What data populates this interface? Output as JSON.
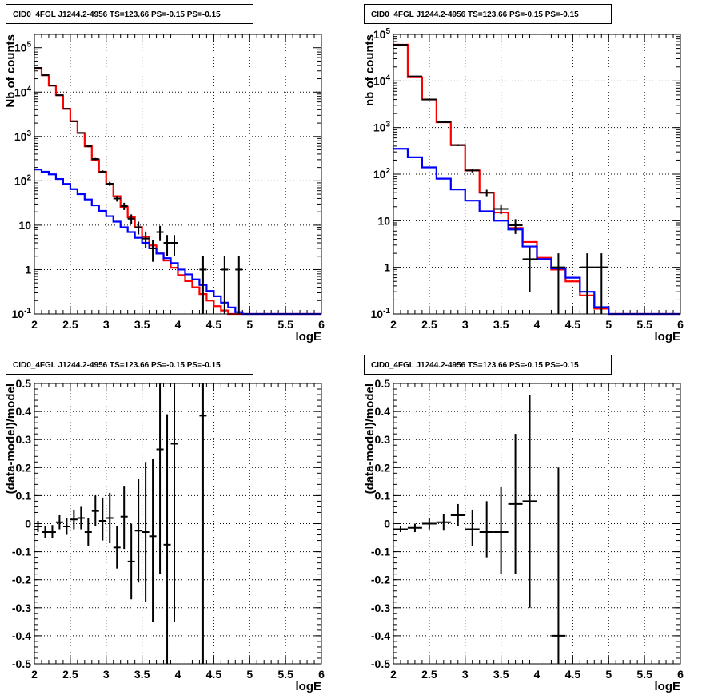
{
  "plots": [
    {
      "title": "CID0_4FGL J1244.2-4956 TS=123.66 PS=-0.15 PS=-0.15",
      "xlabel": "logE",
      "ylabel": "Nb of counts",
      "type": "line",
      "log_y": true,
      "xlim": [
        2,
        6
      ],
      "ylim": [
        0.1,
        200000
      ],
      "x_ticks": [
        "2",
        "2.5",
        "3",
        "3.5",
        "4",
        "4.5",
        "5",
        "5.5",
        "6"
      ],
      "y_ticks": [
        "10^-1",
        "1",
        "10",
        "10^2",
        "10^3",
        "10^4",
        "10^5"
      ],
      "grid": true
    },
    {
      "title": "CID0_4FGL J1244.2-4956 TS=123.66 PS=-0.15 PS=-0.15",
      "xlabel": "logE",
      "ylabel": "nb of counts",
      "type": "line",
      "log_y": true,
      "xlim": [
        2,
        6
      ],
      "ylim": [
        0.1,
        100000
      ],
      "x_ticks": [
        "2",
        "2.5",
        "3",
        "3.5",
        "4",
        "4.5",
        "5",
        "5.5",
        "6"
      ],
      "y_ticks": [
        "10^-1",
        "1",
        "10",
        "10^2",
        "10^3",
        "10^4",
        "10^5"
      ],
      "grid": true
    },
    {
      "title": "CID0_4FGL J1244.2-4956 TS=123.66 PS=-0.15 PS=-0.15",
      "xlabel": "logE",
      "ylabel": "(data-model)/model",
      "type": "scatter",
      "log_y": false,
      "xlim": [
        2,
        6
      ],
      "ylim": [
        -0.5,
        0.5
      ],
      "x_ticks": [
        "2",
        "2.5",
        "3",
        "3.5",
        "4",
        "4.5",
        "5",
        "5.5",
        "6"
      ],
      "y_ticks": [
        "-0.5",
        "-0.4",
        "-0.3",
        "-0.2",
        "-0.1",
        "0",
        "0.1",
        "0.2",
        "0.3",
        "0.4",
        "0.5"
      ],
      "grid": true
    },
    {
      "title": "CID0_4FGL J1244.2-4956 TS=123.66 PS=-0.15 PS=-0.15",
      "xlabel": "logE",
      "ylabel": "(data-model)/model",
      "type": "scatter",
      "log_y": false,
      "xlim": [
        2,
        6
      ],
      "ylim": [
        -0.5,
        0.5
      ],
      "x_ticks": [
        "2",
        "2.5",
        "3",
        "3.5",
        "4",
        "4.5",
        "5",
        "5.5",
        "6"
      ],
      "y_ticks": [
        "-0.5",
        "-0.4",
        "-0.3",
        "-0.2",
        "-0.1",
        "0",
        "0.1",
        "0.2",
        "0.3",
        "0.4",
        "0.5"
      ],
      "grid": true
    }
  ],
  "chart_data": [
    {
      "type": "line",
      "title": "CID0_4FGL J1244.2-4956 TS=123.66 PS=-0.15 PS=-0.15",
      "xlabel": "logE",
      "ylabel": "Nb of counts",
      "log_y": true,
      "xlim": [
        2,
        6
      ],
      "ylim": [
        0.1,
        200000
      ],
      "grid": true,
      "bin_edges": [
        2.0,
        2.1,
        2.2,
        2.3,
        2.4,
        2.5,
        2.6,
        2.7,
        2.8,
        2.9,
        3.0,
        3.1,
        3.2,
        3.3,
        3.4,
        3.5,
        3.6,
        3.7,
        3.8,
        3.9,
        4.0,
        4.1,
        4.2,
        4.3,
        4.4,
        4.5,
        4.6,
        4.7,
        4.8,
        4.9,
        5.0,
        5.1,
        5.2,
        5.3,
        5.4,
        5.5,
        5.6,
        5.7,
        5.8,
        5.9,
        6.0
      ],
      "series": [
        {
          "color": "#ff0000",
          "values": [
            35000,
            24000,
            14000,
            8500,
            4200,
            2200,
            1200,
            600,
            300,
            160,
            85,
            45,
            26,
            15,
            9,
            5.5,
            3.5,
            2.3,
            1.6,
            1.1,
            0.75,
            0.55,
            0.4,
            0.28,
            0.2,
            0.15,
            0.12,
            0.1,
            0.1,
            0.1,
            0.1,
            0.1,
            0.1,
            0.1,
            0.1,
            0.1,
            0.1,
            0.1,
            0.1,
            0.1
          ]
        },
        {
          "color": "#0000ff",
          "values": [
            180,
            160,
            140,
            110,
            85,
            65,
            50,
            38,
            28,
            21,
            16,
            12,
            9,
            7,
            5.2,
            4,
            3,
            2.3,
            1.8,
            1.4,
            1.0,
            0.78,
            0.6,
            0.45,
            0.33,
            0.25,
            0.18,
            0.14,
            0.11,
            0.1,
            0.1,
            0.1,
            0.1,
            0.1,
            0.1,
            0.1,
            0.1,
            0.1,
            0.1,
            0.1
          ]
        }
      ],
      "data_points": [
        {
          "x": 2.05,
          "y": 35000,
          "ylo": 34800,
          "yhi": 35200
        },
        {
          "x": 2.15,
          "y": 24000,
          "ylo": 23800,
          "yhi": 24200
        },
        {
          "x": 2.25,
          "y": 14000,
          "ylo": 13800,
          "yhi": 14200
        },
        {
          "x": 2.35,
          "y": 8500,
          "ylo": 8400,
          "yhi": 8600
        },
        {
          "x": 2.45,
          "y": 4200,
          "ylo": 4130,
          "yhi": 4270
        },
        {
          "x": 2.55,
          "y": 2200,
          "ylo": 2150,
          "yhi": 2250
        },
        {
          "x": 2.65,
          "y": 1200,
          "ylo": 1165,
          "yhi": 1235
        },
        {
          "x": 2.75,
          "y": 600,
          "ylo": 575,
          "yhi": 625
        },
        {
          "x": 2.85,
          "y": 310,
          "ylo": 292,
          "yhi": 328
        },
        {
          "x": 2.95,
          "y": 160,
          "ylo": 148,
          "yhi": 172
        },
        {
          "x": 3.05,
          "y": 86,
          "ylo": 77,
          "yhi": 95
        },
        {
          "x": 3.15,
          "y": 40,
          "ylo": 34,
          "yhi": 46
        },
        {
          "x": 3.25,
          "y": 27,
          "ylo": 22,
          "yhi": 32
        },
        {
          "x": 3.35,
          "y": 14,
          "ylo": 10.5,
          "yhi": 17.5
        },
        {
          "x": 3.45,
          "y": 9,
          "ylo": 6.2,
          "yhi": 12
        },
        {
          "x": 3.55,
          "y": 5,
          "ylo": 3,
          "yhi": 7.2
        },
        {
          "x": 3.65,
          "y": 3,
          "ylo": 1.5,
          "yhi": 4.7
        },
        {
          "x": 3.75,
          "y": 7,
          "ylo": 4.4,
          "yhi": 9.6
        },
        {
          "x": 3.85,
          "y": 4,
          "ylo": 2,
          "yhi": 6
        },
        {
          "x": 3.95,
          "y": 4,
          "ylo": 2,
          "yhi": 6
        },
        {
          "x": 4.35,
          "y": 1,
          "ylo": 0.1,
          "yhi": 2
        },
        {
          "x": 4.65,
          "y": 1,
          "ylo": 0.1,
          "yhi": 2
        },
        {
          "x": 4.85,
          "y": 1,
          "ylo": 0.1,
          "yhi": 2
        }
      ]
    },
    {
      "type": "line",
      "title": "CID0_4FGL J1244.2-4956 TS=123.66 PS=-0.15 PS=-0.15",
      "xlabel": "logE",
      "ylabel": "nb of counts",
      "log_y": true,
      "xlim": [
        2,
        6
      ],
      "ylim": [
        0.1,
        100000
      ],
      "grid": true,
      "bin_edges": [
        2.0,
        2.2,
        2.4,
        2.6,
        2.8,
        3.0,
        3.2,
        3.4,
        3.6,
        3.8,
        4.0,
        4.2,
        4.4,
        4.6,
        4.8,
        5.0,
        5.2,
        5.4,
        5.6,
        5.8,
        6.0
      ],
      "series": [
        {
          "color": "#ff0000",
          "values": [
            60000,
            12000,
            4000,
            1300,
            420,
            120,
            40,
            15,
            7,
            3.5,
            1.6,
            0.9,
            0.5,
            0.25,
            0.13,
            0.1,
            0.1,
            0.1,
            0.1,
            0.1
          ]
        },
        {
          "color": "#0000ff",
          "values": [
            350,
            230,
            140,
            80,
            47,
            27,
            16,
            10,
            6.5,
            2.8,
            1.5,
            0.95,
            0.6,
            0.3,
            0.14,
            0.1,
            0.1,
            0.1,
            0.1,
            0.1
          ]
        }
      ],
      "data_points": [
        {
          "x": 2.1,
          "y": 60000,
          "ylo": 59750,
          "yhi": 60250
        },
        {
          "x": 2.3,
          "y": 12500,
          "ylo": 12390,
          "yhi": 12610
        },
        {
          "x": 2.5,
          "y": 4000,
          "ylo": 3937,
          "yhi": 4063
        },
        {
          "x": 2.7,
          "y": 1300,
          "ylo": 1264,
          "yhi": 1336
        },
        {
          "x": 2.9,
          "y": 420,
          "ylo": 400,
          "yhi": 440
        },
        {
          "x": 3.1,
          "y": 120,
          "ylo": 109,
          "yhi": 131
        },
        {
          "x": 3.3,
          "y": 40,
          "ylo": 33.7,
          "yhi": 46.3
        },
        {
          "x": 3.5,
          "y": 18,
          "ylo": 13.8,
          "yhi": 22.2
        },
        {
          "x": 3.7,
          "y": 8,
          "ylo": 5.2,
          "yhi": 10.8
        },
        {
          "x": 3.9,
          "y": 1.5,
          "ylo": 0.3,
          "yhi": 2.7
        },
        {
          "x": 4.3,
          "y": 1,
          "ylo": 0.1,
          "yhi": 2
        },
        {
          "x": 4.7,
          "y": 1,
          "ylo": 0.1,
          "yhi": 2
        },
        {
          "x": 4.9,
          "y": 1,
          "ylo": 0.1,
          "yhi": 2
        }
      ]
    },
    {
      "type": "scatter",
      "title": "CID0_4FGL J1244.2-4956 TS=123.66 PS=-0.15 PS=-0.15",
      "xlabel": "logE",
      "ylabel": "(data-model)/model",
      "xlim": [
        2,
        6
      ],
      "ylim": [
        -0.5,
        0.5
      ],
      "grid": true,
      "points": [
        {
          "x": 2.05,
          "y": -0.01,
          "xerr": 0.05,
          "ylo": -0.03,
          "yhi": 0.01
        },
        {
          "x": 2.15,
          "y": -0.03,
          "xerr": 0.05,
          "ylo": -0.05,
          "yhi": -0.01
        },
        {
          "x": 2.25,
          "y": -0.03,
          "xerr": 0.05,
          "ylo": -0.05,
          "yhi": -0.005
        },
        {
          "x": 2.35,
          "y": 0.005,
          "xerr": 0.05,
          "ylo": -0.02,
          "yhi": 0.03
        },
        {
          "x": 2.45,
          "y": -0.01,
          "xerr": 0.05,
          "ylo": -0.04,
          "yhi": 0.02
        },
        {
          "x": 2.55,
          "y": 0.015,
          "xerr": 0.05,
          "ylo": -0.02,
          "yhi": 0.05
        },
        {
          "x": 2.65,
          "y": 0.02,
          "xerr": 0.05,
          "ylo": -0.02,
          "yhi": 0.06
        },
        {
          "x": 2.75,
          "y": -0.03,
          "xerr": 0.05,
          "ylo": -0.08,
          "yhi": 0.02
        },
        {
          "x": 2.85,
          "y": 0.045,
          "xerr": 0.05,
          "ylo": -0.01,
          "yhi": 0.1
        },
        {
          "x": 2.95,
          "y": 0.01,
          "xerr": 0.05,
          "ylo": -0.06,
          "yhi": 0.09
        },
        {
          "x": 3.05,
          "y": 0.02,
          "xerr": 0.05,
          "ylo": -0.07,
          "yhi": 0.11
        },
        {
          "x": 3.15,
          "y": -0.085,
          "xerr": 0.05,
          "ylo": -0.16,
          "yhi": -0.01
        },
        {
          "x": 3.25,
          "y": 0.025,
          "xerr": 0.05,
          "ylo": -0.09,
          "yhi": 0.135
        },
        {
          "x": 3.35,
          "y": -0.135,
          "xerr": 0.05,
          "ylo": -0.27,
          "yhi": 0.0
        },
        {
          "x": 3.45,
          "y": -0.025,
          "xerr": 0.05,
          "ylo": -0.21,
          "yhi": 0.16
        },
        {
          "x": 3.55,
          "y": -0.03,
          "xerr": 0.05,
          "ylo": -0.28,
          "yhi": 0.22
        },
        {
          "x": 3.65,
          "y": -0.045,
          "xerr": 0.05,
          "ylo": -0.35,
          "yhi": 0.23
        },
        {
          "x": 3.75,
          "y": 0.265,
          "xerr": 0.05,
          "ylo": -0.18,
          "yhi": 0.5
        },
        {
          "x": 3.85,
          "y": -0.075,
          "xerr": 0.05,
          "ylo": -0.5,
          "yhi": 0.39
        },
        {
          "x": 3.95,
          "y": 0.285,
          "xerr": 0.05,
          "ylo": -0.35,
          "yhi": 0.5
        },
        {
          "x": 4.35,
          "y": 0.385,
          "xerr": 0.05,
          "ylo": -0.5,
          "yhi": 0.5
        }
      ]
    },
    {
      "type": "scatter",
      "title": "CID0_4FGL J1244.2-4956 TS=123.66 PS=-0.15 PS=-0.15",
      "xlabel": "logE",
      "ylabel": "(data-model)/model",
      "xlim": [
        2,
        6
      ],
      "ylim": [
        -0.5,
        0.5
      ],
      "grid": true,
      "points": [
        {
          "x": 2.1,
          "y": -0.02,
          "xerr": 0.1,
          "ylo": -0.03,
          "yhi": -0.01
        },
        {
          "x": 2.3,
          "y": -0.015,
          "xerr": 0.1,
          "ylo": -0.03,
          "yhi": 0.0
        },
        {
          "x": 2.5,
          "y": 0.0,
          "xerr": 0.1,
          "ylo": -0.02,
          "yhi": 0.02
        },
        {
          "x": 2.7,
          "y": 0.005,
          "xerr": 0.1,
          "ylo": -0.025,
          "yhi": 0.035
        },
        {
          "x": 2.9,
          "y": 0.03,
          "xerr": 0.1,
          "ylo": -0.01,
          "yhi": 0.07
        },
        {
          "x": 3.1,
          "y": -0.02,
          "xerr": 0.1,
          "ylo": -0.08,
          "yhi": 0.05
        },
        {
          "x": 3.3,
          "y": -0.03,
          "xerr": 0.1,
          "ylo": -0.12,
          "yhi": 0.08
        },
        {
          "x": 3.5,
          "y": -0.03,
          "xerr": 0.1,
          "ylo": -0.18,
          "yhi": 0.13
        },
        {
          "x": 3.7,
          "y": 0.07,
          "xerr": 0.1,
          "ylo": -0.18,
          "yhi": 0.32
        },
        {
          "x": 3.9,
          "y": 0.08,
          "xerr": 0.1,
          "ylo": -0.3,
          "yhi": 0.46
        },
        {
          "x": 4.3,
          "y": -0.4,
          "xerr": 0.1,
          "ylo": -0.5,
          "yhi": 0.2
        }
      ]
    }
  ]
}
